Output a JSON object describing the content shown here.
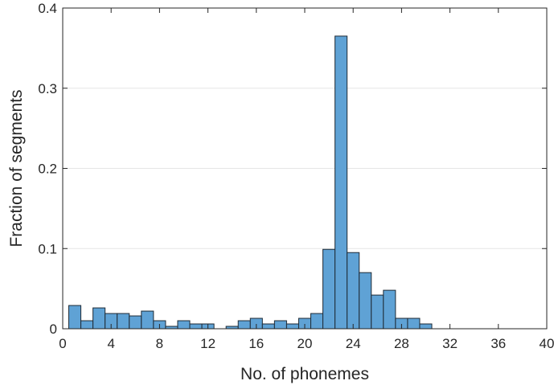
{
  "chart_data": {
    "type": "bar",
    "subtype": "histogram",
    "xlabel": "No. of phonemes",
    "ylabel": "Fraction of segments",
    "xlim": [
      0,
      40
    ],
    "ylim": [
      0,
      0.4
    ],
    "xticks": [
      "0",
      "4",
      "8",
      "12",
      "16",
      "20",
      "24",
      "28",
      "32",
      "36",
      "40"
    ],
    "yticks": [
      "0",
      "0.1",
      "0.2",
      "0.3",
      "0.4"
    ],
    "grid": "horizontal",
    "bar_color": "#5fa2d5",
    "bar_edge_color": "#1f2b36",
    "bins": [
      {
        "start": 0.5,
        "end": 1.5,
        "value": 0.029
      },
      {
        "start": 1.5,
        "end": 2.5,
        "value": 0.01
      },
      {
        "start": 2.5,
        "end": 3.5,
        "value": 0.026
      },
      {
        "start": 3.5,
        "end": 4.5,
        "value": 0.019
      },
      {
        "start": 4.5,
        "end": 5.5,
        "value": 0.019
      },
      {
        "start": 5.5,
        "end": 6.5,
        "value": 0.016
      },
      {
        "start": 6.5,
        "end": 7.5,
        "value": 0.022
      },
      {
        "start": 7.5,
        "end": 8.5,
        "value": 0.01
      },
      {
        "start": 8.5,
        "end": 9.5,
        "value": 0.003
      },
      {
        "start": 9.5,
        "end": 10.5,
        "value": 0.01
      },
      {
        "start": 10.5,
        "end": 11.5,
        "value": 0.006
      },
      {
        "start": 11.5,
        "end": 12.5,
        "value": 0.006
      },
      {
        "start": 13.5,
        "end": 14.5,
        "value": 0.003
      },
      {
        "start": 14.5,
        "end": 15.5,
        "value": 0.01
      },
      {
        "start": 15.5,
        "end": 16.5,
        "value": 0.013
      },
      {
        "start": 16.5,
        "end": 17.5,
        "value": 0.006
      },
      {
        "start": 17.5,
        "end": 18.5,
        "value": 0.01
      },
      {
        "start": 18.5,
        "end": 19.5,
        "value": 0.006
      },
      {
        "start": 19.5,
        "end": 20.5,
        "value": 0.013
      },
      {
        "start": 20.5,
        "end": 21.5,
        "value": 0.019
      },
      {
        "start": 21.5,
        "end": 22.5,
        "value": 0.099
      },
      {
        "start": 22.5,
        "end": 23.5,
        "value": 0.365
      },
      {
        "start": 23.5,
        "end": 24.5,
        "value": 0.095
      },
      {
        "start": 24.5,
        "end": 25.5,
        "value": 0.07
      },
      {
        "start": 25.5,
        "end": 26.5,
        "value": 0.042
      },
      {
        "start": 26.5,
        "end": 27.5,
        "value": 0.048
      },
      {
        "start": 27.5,
        "end": 28.5,
        "value": 0.013
      },
      {
        "start": 28.5,
        "end": 29.5,
        "value": 0.013
      },
      {
        "start": 29.5,
        "end": 30.5,
        "value": 0.006
      }
    ]
  }
}
